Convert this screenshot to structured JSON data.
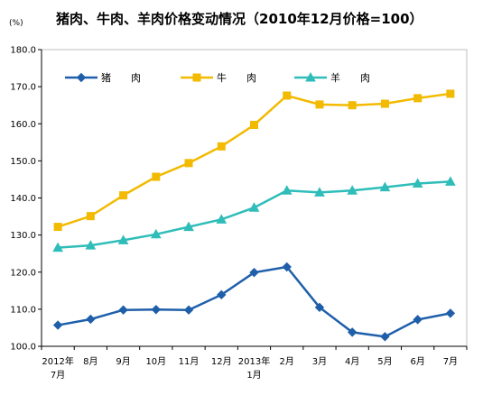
{
  "chart_data": {
    "type": "line",
    "title": "猪肉、牛肉、羊肉价格变动情况（2010年12月价格=100）",
    "y_unit": "(%)",
    "ylim": [
      100,
      180
    ],
    "yticks": [
      "100.0",
      "110.0",
      "120.0",
      "130.0",
      "140.0",
      "150.0",
      "160.0",
      "170.0",
      "180.0"
    ],
    "categories": [
      [
        "2012年",
        "7月"
      ],
      [
        "8月"
      ],
      [
        "9月"
      ],
      [
        "10月"
      ],
      [
        "11月"
      ],
      [
        "12月"
      ],
      [
        "2013年",
        "1月"
      ],
      [
        "2月"
      ],
      [
        "3月"
      ],
      [
        "4月"
      ],
      [
        "5月"
      ],
      [
        "6月"
      ],
      [
        "7月"
      ]
    ],
    "grid": false,
    "legend_position": "top",
    "series": [
      {
        "name": "猪　　肉",
        "color": "#1F5FAA",
        "marker": "diamond",
        "values": [
          105.7,
          107.3,
          109.8,
          109.9,
          109.8,
          113.9,
          119.9,
          121.4,
          110.5,
          103.8,
          102.6,
          107.2,
          108.9
        ]
      },
      {
        "name": "牛　　肉",
        "color": "#F2BA00",
        "marker": "square",
        "values": [
          132.2,
          135.1,
          140.7,
          145.7,
          149.4,
          153.9,
          159.7,
          167.6,
          165.2,
          165.0,
          165.4,
          166.9,
          168.1
        ]
      },
      {
        "name": "羊　　肉",
        "color": "#2EBDB9",
        "marker": "triangle",
        "values": [
          126.6,
          127.2,
          128.6,
          130.2,
          132.2,
          134.2,
          137.4,
          142.0,
          141.5,
          142.0,
          142.9,
          143.9,
          144.4
        ]
      }
    ]
  }
}
